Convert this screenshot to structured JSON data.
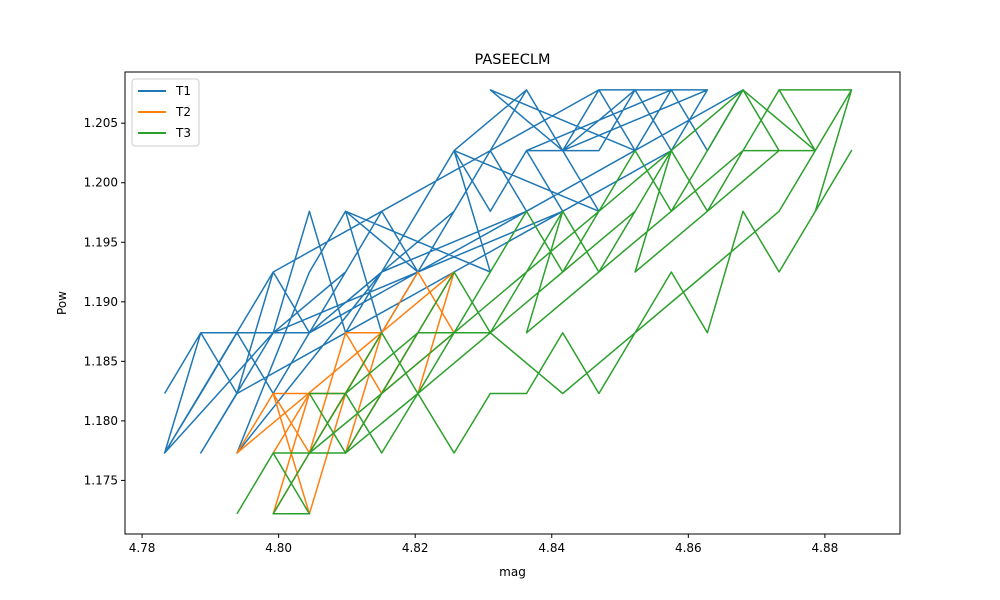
{
  "chart_data": {
    "type": "line",
    "title": "PASEECLM",
    "xlabel": "mag",
    "ylabel": "Pow",
    "xlim": [
      4.7775,
      4.891
    ],
    "ylim": [
      1.1705,
      1.2093
    ],
    "xticks": [
      4.78,
      4.8,
      4.82,
      4.84,
      4.86,
      4.88
    ],
    "xtick_labels": [
      "4.78",
      "4.80",
      "4.82",
      "4.84",
      "4.86",
      "4.88"
    ],
    "yticks": [
      1.175,
      1.18,
      1.185,
      1.19,
      1.195,
      1.2,
      1.205
    ],
    "ytick_labels": [
      "1.175",
      "1.180",
      "1.185",
      "1.190",
      "1.195",
      "1.200",
      "1.205"
    ],
    "grid": false,
    "legend_position": "top-left",
    "series": [
      {
        "name": "T1",
        "color": "#1f77b4",
        "x": [
          4.7833,
          4.7886,
          4.7939,
          4.7886,
          4.7992,
          4.7833,
          4.7886,
          4.7939,
          4.7992,
          4.8045,
          4.7886,
          4.7939,
          4.7992,
          4.8045,
          4.8098,
          4.7992,
          4.8045,
          4.8098,
          4.8151,
          4.7939,
          4.8045,
          4.8098,
          4.8151,
          4.8204,
          4.7992,
          4.8098,
          4.8151,
          4.8204,
          4.8257,
          4.8045,
          4.8151,
          4.8204,
          4.8257,
          4.831,
          4.8098,
          4.8204,
          4.8257,
          4.831,
          4.8363,
          4.8151,
          4.8257,
          4.831,
          4.8363,
          4.8416,
          4.8204,
          4.831,
          4.8363,
          4.8416,
          4.8469,
          4.8257,
          4.8363,
          4.8416,
          4.8469,
          4.8522,
          4.831,
          4.8416,
          4.8469,
          4.8522,
          4.8575,
          4.8363,
          4.8469,
          4.8522,
          4.8575,
          4.8628,
          4.8416,
          4.8522,
          4.8575,
          4.8628,
          4.8469,
          4.8575,
          4.8628,
          4.868,
          4.8363,
          4.8204,
          4.8045,
          4.7886,
          4.7833,
          4.7992,
          4.8151,
          4.831,
          4.8469,
          4.8628,
          4.8575,
          4.8416,
          4.8257,
          4.8098,
          4.7939,
          4.7886
        ],
        "y": [
          1.1823,
          1.1874,
          1.1823,
          1.1773,
          1.1874,
          1.1773,
          1.1823,
          1.1874,
          1.1823,
          1.1874,
          1.1874,
          1.1823,
          1.1925,
          1.1874,
          1.1925,
          1.1874,
          1.1976,
          1.1874,
          1.1925,
          1.1773,
          1.1925,
          1.1976,
          1.1874,
          1.1925,
          1.1874,
          1.1925,
          1.1976,
          1.1925,
          1.1976,
          1.1874,
          1.1925,
          1.1976,
          1.2027,
          1.1925,
          1.1976,
          1.1925,
          1.1976,
          1.2027,
          1.1976,
          1.1925,
          1.2027,
          1.1976,
          1.2027,
          1.1976,
          1.1925,
          1.2027,
          1.2078,
          1.2027,
          1.1976,
          1.2027,
          1.2078,
          1.2027,
          1.2078,
          1.2027,
          1.2078,
          1.2027,
          1.2078,
          1.2027,
          1.2078,
          1.2027,
          1.2027,
          1.2078,
          1.2027,
          1.2078,
          1.2027,
          1.2078,
          1.2027,
          1.2078,
          1.2078,
          1.2078,
          1.2027,
          1.2078,
          1.1976,
          1.1925,
          1.1874,
          1.1874,
          1.1773,
          1.1925,
          1.1976,
          1.2027,
          1.2078,
          1.2078,
          1.2027,
          1.1976,
          1.1925,
          1.1874,
          1.1823,
          1.1773
        ]
      },
      {
        "name": "T2",
        "color": "#ff7f0e",
        "x": [
          4.7992,
          4.8045,
          4.7992,
          4.8045,
          4.8098,
          4.7992,
          4.8045,
          4.8098,
          4.8151,
          4.8045,
          4.8098,
          4.8151,
          4.8204,
          4.8098,
          4.8151,
          4.8204,
          4.8257,
          4.8151,
          4.8204,
          4.8257,
          4.8204,
          4.8257,
          4.7939,
          4.7992,
          4.8045,
          4.8098,
          4.8151,
          4.8204
        ],
        "y": [
          1.1773,
          1.1823,
          1.1722,
          1.1773,
          1.1823,
          1.1823,
          1.1722,
          1.1823,
          1.1874,
          1.1773,
          1.1874,
          1.1823,
          1.1874,
          1.1773,
          1.1874,
          1.1925,
          1.1874,
          1.1823,
          1.1874,
          1.1925,
          1.1823,
          1.1925,
          1.1773,
          1.1823,
          1.1773,
          1.1874,
          1.1874,
          1.1925
        ]
      },
      {
        "name": "T3",
        "color": "#2ca02c",
        "x": [
          4.7939,
          4.7992,
          4.8045,
          4.7992,
          4.8045,
          4.8098,
          4.8045,
          4.8098,
          4.8151,
          4.8204,
          4.8098,
          4.8151,
          4.8204,
          4.8257,
          4.8151,
          4.8204,
          4.8257,
          4.831,
          4.8204,
          4.8257,
          4.831,
          4.8363,
          4.8257,
          4.831,
          4.8363,
          4.8416,
          4.831,
          4.8363,
          4.8416,
          4.8469,
          4.8363,
          4.8416,
          4.8469,
          4.8522,
          4.8416,
          4.8469,
          4.8522,
          4.8575,
          4.8469,
          4.8522,
          4.8575,
          4.8628,
          4.8522,
          4.8575,
          4.8628,
          4.868,
          4.8575,
          4.8628,
          4.868,
          4.8733,
          4.8628,
          4.868,
          4.8733,
          4.8786,
          4.868,
          4.8733,
          4.8786,
          4.8839,
          4.8733,
          4.8786,
          4.8839,
          4.8786,
          4.8839,
          4.8733,
          4.868,
          4.8628,
          4.8575,
          4.8522,
          4.8469,
          4.8416,
          4.8363,
          4.831,
          4.8257,
          4.8204,
          4.8151,
          4.8098,
          4.8045,
          4.7992,
          4.8045,
          4.8151,
          4.8257,
          4.8363,
          4.8469,
          4.8575,
          4.868,
          4.8786,
          4.8839,
          4.8733,
          4.8628,
          4.8522,
          4.8416,
          4.831,
          4.8204,
          4.8098,
          4.7992
        ],
        "y": [
          1.1722,
          1.1773,
          1.1722,
          1.1722,
          1.1773,
          1.1823,
          1.1823,
          1.1773,
          1.1823,
          1.1874,
          1.1823,
          1.1874,
          1.1823,
          1.1874,
          1.1823,
          1.1874,
          1.1925,
          1.1874,
          1.1874,
          1.1925,
          1.1874,
          1.1925,
          1.1874,
          1.1925,
          1.1976,
          1.1925,
          1.1874,
          1.1925,
          1.1976,
          1.1925,
          1.1874,
          1.1976,
          1.1925,
          1.1976,
          1.1925,
          1.1976,
          1.2027,
          1.1976,
          1.1925,
          1.1976,
          1.2027,
          1.1976,
          1.1925,
          1.2027,
          1.1976,
          1.2027,
          1.1976,
          1.2027,
          1.2078,
          1.2027,
          1.1976,
          1.2027,
          1.2078,
          1.2027,
          1.2027,
          1.2078,
          1.2027,
          1.2078,
          1.2078,
          1.2027,
          1.2078,
          1.1976,
          1.2027,
          1.1925,
          1.1976,
          1.1874,
          1.1925,
          1.1874,
          1.1823,
          1.1874,
          1.1823,
          1.1823,
          1.1773,
          1.1823,
          1.1773,
          1.1823,
          1.1773,
          1.1722,
          1.1773,
          1.1823,
          1.1874,
          1.1925,
          1.1976,
          1.2027,
          1.2078,
          1.2027,
          1.2078,
          1.1976,
          1.1925,
          1.1874,
          1.1823,
          1.1874,
          1.1823,
          1.1773,
          1.1773
        ]
      }
    ]
  }
}
